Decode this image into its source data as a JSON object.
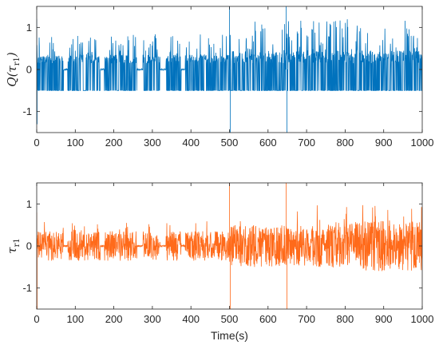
{
  "chart_data": [
    {
      "type": "line",
      "title": "",
      "xlabel": "",
      "ylabel_main": "Q(τ",
      "ylabel_sub": "r1",
      "ylabel_close": ")",
      "xlim": [
        0,
        1000
      ],
      "ylim": [
        -1.5,
        1.5
      ],
      "xticks": [
        "0",
        "100",
        "200",
        "300",
        "400",
        "500",
        "600",
        "700",
        "800",
        "900",
        "1000"
      ],
      "xtick_values": [
        0,
        100,
        200,
        300,
        400,
        500,
        600,
        700,
        800,
        900,
        1000
      ],
      "yticks": [
        "-1",
        "0",
        "1"
      ],
      "ytick_values": [
        -1,
        0,
        1
      ],
      "grid": false,
      "color": "#0072BD",
      "series": [
        {
          "description_points": [
            [
              0,
              1.2
            ],
            [
              2,
              0.85
            ],
            [
              5,
              0.5
            ],
            [
              10,
              -0.5
            ],
            [
              20,
              0.3
            ],
            [
              30,
              -0.5
            ],
            [
              40,
              0.3
            ],
            [
              60,
              -0.5
            ],
            [
              70,
              0.3
            ],
            [
              80,
              -0.5
            ],
            [
              100,
              0.35
            ],
            [
              150,
              -0.5
            ],
            [
              200,
              0.35
            ],
            [
              250,
              -0.5
            ],
            [
              270,
              0.3
            ],
            [
              300,
              -0.5
            ],
            [
              330,
              0.35
            ],
            [
              400,
              -0.5
            ],
            [
              450,
              0.35
            ],
            [
              490,
              -0.5
            ],
            [
              500,
              1.8
            ],
            [
              503,
              -1.8
            ],
            [
              520,
              0.4
            ],
            [
              550,
              -0.5
            ],
            [
              600,
              0.4
            ],
            [
              640,
              -0.5
            ],
            [
              648,
              1.8
            ],
            [
              650,
              -1.8
            ],
            [
              700,
              0.45
            ],
            [
              750,
              -0.5
            ],
            [
              800,
              0.5
            ],
            [
              850,
              -0.5
            ],
            [
              900,
              0.55
            ],
            [
              950,
              -0.5
            ],
            [
              1000,
              0.3
            ]
          ]
        }
      ],
      "envelope": {
        "default_amplitude": 0.35,
        "quiet_intervals": [
          [
            70,
            80
          ],
          [
            165,
            175
          ],
          [
            260,
            275
          ],
          [
            320,
            335
          ],
          [
            375,
            385
          ]
        ],
        "spikes": [
          {
            "x": 0,
            "y": 1.2
          },
          {
            "x": 1,
            "y": -1.3
          },
          {
            "x": 500,
            "y": 1.6
          },
          {
            "x": 502,
            "y": -1.6
          },
          {
            "x": 647,
            "y": 1.6
          },
          {
            "x": 649,
            "y": -1.6
          }
        ]
      }
    },
    {
      "type": "line",
      "title": "",
      "xlabel": "Time(s)",
      "ylabel_main": "τ",
      "ylabel_sub": "r1",
      "ylabel_close": "",
      "xlim": [
        0,
        1000
      ],
      "ylim": [
        -1.5,
        1.5
      ],
      "xticks": [
        "0",
        "100",
        "200",
        "300",
        "400",
        "500",
        "600",
        "700",
        "800",
        "900",
        "1000"
      ],
      "xtick_values": [
        0,
        100,
        200,
        300,
        400,
        500,
        600,
        700,
        800,
        900,
        1000
      ],
      "yticks": [
        "-1",
        "0",
        "1"
      ],
      "ytick_values": [
        -1,
        0,
        1
      ],
      "grid": false,
      "color": "#FF6A1A",
      "envelope": {
        "default_amplitude": 0.35,
        "quiet_intervals": [
          [
            70,
            80
          ],
          [
            165,
            175
          ],
          [
            260,
            275
          ],
          [
            320,
            335
          ],
          [
            375,
            385
          ]
        ],
        "spikes": [
          {
            "x": 0,
            "y": 0.8
          },
          {
            "x": 1,
            "y": -1.5
          },
          {
            "x": 500,
            "y": 1.5
          },
          {
            "x": 502,
            "y": -1.5
          },
          {
            "x": 647,
            "y": 1.5
          },
          {
            "x": 649,
            "y": -1.5
          }
        ]
      }
    }
  ]
}
